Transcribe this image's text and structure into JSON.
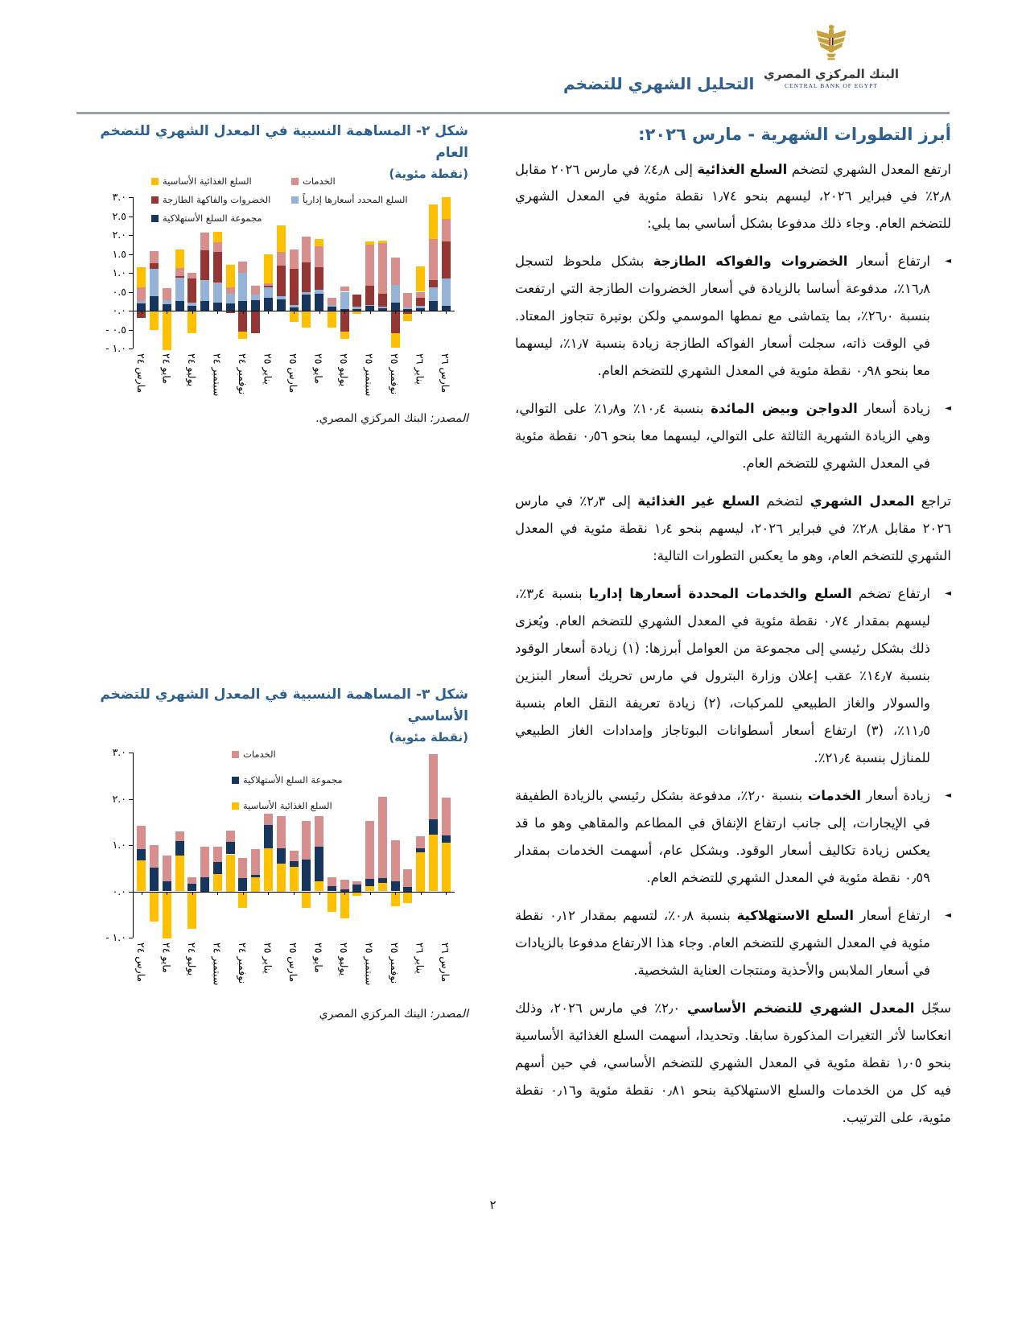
{
  "header": {
    "brand_ar": "البنك المركزي المصري",
    "brand_en": "CENTRAL BANK OF EGYPT",
    "doc_title": "التحليل الشهري للتضخم"
  },
  "article": {
    "title": "أبرز التطورات الشهرية - مارس ٢٠٢٦:",
    "blocks": [
      {
        "type": "p",
        "runs": [
          {
            "t": "ارتفع المعدل الشهري لتضخم "
          },
          {
            "t": "السلع الغذائية",
            "b": true
          },
          {
            "t": " إلى ٤٫٨٪ في مارس ٢٠٢٦ مقابل ٢٫٨٪ في فبراير ٢٠٢٦، ليسهم بنحو ١٫٧٤ نقطة مئوية في المعدل الشهري للتضخم العام. وجاء ذلك مدفوعا بشكل أساسي بما يلي:"
          }
        ]
      },
      {
        "type": "bullet",
        "runs": [
          {
            "t": "ارتفاع أسعار "
          },
          {
            "t": "الخضروات والفواكه الطازجة",
            "b": true
          },
          {
            "t": " بشكل ملحوظ لتسجل ١٦٫٨٪، مدفوعة أساسا بالزيادة في أسعار الخضروات الطازجة التي ارتفعت بنسبة ٢٦٫٠٪، بما يتماشى مع نمطها الموسمي ولكن بوتيرة تتجاوز المعتاد. في الوقت ذاته، سجلت أسعار الفواكه الطازجة زيادة بنسبة ١٫٧٪، ليسهما معا بنحو ٠٫٩٨ نقطة مئوية في المعدل الشهري للتضخم العام."
          }
        ]
      },
      {
        "type": "bullet",
        "runs": [
          {
            "t": "زيادة أسعار "
          },
          {
            "t": "الدواجن وبيض المائدة",
            "b": true
          },
          {
            "t": " بنسبة ١٠٫٤٪ و١٫٨٪ على التوالي، وهي الزيادة الشهرية الثالثة على التوالي، ليسهما معا بنحو ٠٫٥٦ نقطة مئوية في المعدل الشهري للتضخم العام."
          }
        ]
      },
      {
        "type": "p",
        "runs": [
          {
            "t": "تراجع "
          },
          {
            "t": "المعدل الشهري",
            "b": true
          },
          {
            "t": " لتضخم "
          },
          {
            "t": "السلع غير الغذائية",
            "b": true
          },
          {
            "t": " إلى ٢٫٣٪ في مارس ٢٠٢٦ مقابل ٢٫٨٪ في فبراير ٢٠٢٦، ليسهم بنحو ١٫٤ نقطة مئوية في المعدل الشهري للتضخم العام، وهو ما يعكس التطورات التالية:"
          }
        ]
      },
      {
        "type": "bullet",
        "runs": [
          {
            "t": "ارتفاع تضخم "
          },
          {
            "t": "السلع والخدمات المحددة أسعارها إداريا",
            "b": true
          },
          {
            "t": " بنسبة ٣٫٤٪، ليسهم بمقدار ٠٫٧٤ نقطة مئوية في المعدل الشهري للتضخم العام. ويُعزى ذلك بشكل رئيسي إلى مجموعة من العوامل أبرزها: (١) زيادة أسعار الوقود بنسبة ١٤٫٧٪ عقب إعلان وزارة البترول في مارس تحريك أسعار البنزين والسولار والغاز الطبيعي للمركبات، (٢) زيادة تعريفة النقل العام بنسبة ١١٫٥٪، (٣) ارتفاع أسعار أسطوانات البوتاجاز وإمدادات الغاز الطبيعي للمنازل بنسبة ٢١٫٤٪."
          }
        ]
      },
      {
        "type": "bullet",
        "runs": [
          {
            "t": "زيادة أسعار "
          },
          {
            "t": "الخدمات",
            "b": true
          },
          {
            "t": " بنسبة ٢٫٠٪، مدفوعة بشكل رئيسي بالزيادة الطفيفة في الإيجارات، إلى جانب ارتفاع الإنفاق في المطاعم والمقاهي وهو ما قد يعكس زيادة تكاليف أسعار الوقود. وبشكل عام، أسهمت الخدمات بمقدار ٠٫٥٩ نقطة مئوية في المعدل الشهري للتضخم العام."
          }
        ]
      },
      {
        "type": "bullet",
        "runs": [
          {
            "t": "ارتفاع أسعار "
          },
          {
            "t": "السلع الاستهلاكية",
            "b": true
          },
          {
            "t": " بنسبة ٠٫٨٪، لتسهم بمقدار ٠٫١٢ نقطة مئوية في المعدل الشهري للتضخم العام. وجاء هذا الارتفاع مدفوعا بالزيادات في أسعار الملابس والأحذية ومنتجات العناية الشخصية."
          }
        ]
      },
      {
        "type": "p",
        "runs": [
          {
            "t": "سجّل "
          },
          {
            "t": "المعدل الشهري للتضخم الأساسي",
            "b": true
          },
          {
            "t": " ٢٫٠٪ في مارس ٢٠٢٦، وذلك انعكاسا لأثر التغيرات المذكورة سابقا. وتحديدا، أسهمت السلع الغذائية الأساسية بنحو ١٫٠٥ نقطة مئوية في المعدل الشهري للتضخم الأساسي، في حين أسهم فيه كل من الخدمات والسلع الاستهلاكية بنحو ٠٫٨١ نقطة مئوية و٠٫١٦ نقطة مئوية، على الترتيب."
          }
        ]
      }
    ]
  },
  "figure2": {
    "title": "شكل ٢- المساهمة النسبية في المعدل الشهري للتضخم العام",
    "subtitle": "(نقطة مئوية)",
    "source_label": "المصدر:",
    "source_text": " البنك المركزي المصري."
  },
  "figure3": {
    "title": "شكل ٣- المساهمة النسبية في المعدل الشهري للتضخم الأساسي",
    "subtitle": "(نقطة مئوية)",
    "source_label": "المصدر:",
    "source_text": " البنك المركزي المصري"
  },
  "page_number": "٢",
  "chart_data": [
    {
      "type": "bar",
      "stacked": true,
      "title": "شكل ٢- المساهمة النسبية في المعدل الشهري للتضخم العام",
      "ylabel": "نقطة مئوية",
      "ylim": [
        -1.0,
        3.0
      ],
      "grid": false,
      "legend_position": "top-inside",
      "categories": [
        "مارس ٢٤",
        "أبريل ٢٤",
        "مايو ٢٤",
        "يونيو ٢٤",
        "يوليو ٢٤",
        "أغسطس ٢٤",
        "سبتمبر ٢٤",
        "أكتوبر ٢٤",
        "نوفمبر ٢٤",
        "ديسمبر ٢٤",
        "يناير ٢٥",
        "فبراير ٢٥",
        "مارس ٢٥",
        "أبريل ٢٥",
        "مايو ٢٥",
        "يونيو ٢٥",
        "يوليو ٢٥",
        "أغسطس ٢٥",
        "سبتمبر ٢٥",
        "أكتوبر ٢٥",
        "نوفمبر ٢٥",
        "ديسمبر ٢٥",
        "يناير ٢٦",
        "فبراير ٢٦",
        "مارس ٢٦"
      ],
      "x_tick_every": 2,
      "y_ticks": [
        {
          "v": 3.0,
          "label": "٣.٠"
        },
        {
          "v": 2.5,
          "label": "٢.٥"
        },
        {
          "v": 2.0,
          "label": "٢.٠"
        },
        {
          "v": 1.5,
          "label": "١.٥"
        },
        {
          "v": 1.0,
          "label": "١.٠"
        },
        {
          "v": 0.5,
          "label": "٠.٥"
        },
        {
          "v": 0.0,
          "label": "٠.٠"
        },
        {
          "v": -0.5,
          "label": "- ٠.٥"
        },
        {
          "v": -1.0,
          "label": "- ١.٠"
        }
      ],
      "series": [
        {
          "name": "مجموعة السلع الأستهلاكية",
          "color": "#17365D",
          "values": [
            0.2,
            0.38,
            0.18,
            0.25,
            0.12,
            0.25,
            0.22,
            0.2,
            0.25,
            0.28,
            0.35,
            0.3,
            0.08,
            0.42,
            0.45,
            0.1,
            0.05,
            0.05,
            0.12,
            0.06,
            0.22,
            0.05,
            0.06,
            0.25,
            0.12
          ]
        },
        {
          "name": "السلع المحدد أسعارها إدارياً",
          "color": "#95B3D7",
          "values": [
            0.06,
            0.72,
            0.1,
            0.62,
            0.1,
            0.55,
            0.53,
            0.25,
            0.75,
            0.15,
            0.27,
            0.08,
            0.07,
            0.06,
            0.1,
            0.05,
            0.45,
            0.05,
            0.03,
            0.04,
            0.46,
            0.03,
            0.06,
            0.37,
            0.74
          ]
        },
        {
          "name": "الخضروات والفاكهة الطازجة",
          "color": "#943634",
          "values": [
            -0.2,
            0.15,
            0.0,
            0.05,
            0.63,
            0.8,
            0.8,
            -0.07,
            -0.55,
            -0.6,
            0.05,
            0.82,
            0.95,
            0.8,
            0.6,
            0.0,
            -0.55,
            0.32,
            0.5,
            0.35,
            -0.6,
            -0.08,
            0.23,
            0.18,
            0.98
          ]
        },
        {
          "name": "الخدمات",
          "color": "#D78F8D",
          "values": [
            0.36,
            0.32,
            0.32,
            0.2,
            0.15,
            0.47,
            0.25,
            0.17,
            0.3,
            0.22,
            0.05,
            0.35,
            0.52,
            0.67,
            0.55,
            0.2,
            0.13,
            0.0,
            1.1,
            1.33,
            0.72,
            0.38,
            0.15,
            1.1,
            0.59
          ]
        },
        {
          "name": "السلع الغذائية الأساسية",
          "color": "#FFC000",
          "values": [
            0.52,
            -0.52,
            -1.05,
            0.5,
            -0.6,
            0.0,
            0.28,
            0.6,
            -0.2,
            0.0,
            0.78,
            0.7,
            -0.3,
            -0.45,
            0.2,
            -0.45,
            -0.2,
            -0.08,
            0.07,
            0.07,
            -0.38,
            -0.2,
            0.67,
            0.9,
            0.58
          ]
        }
      ]
    },
    {
      "type": "bar",
      "stacked": true,
      "title": "شكل ٣- المساهمة النسبية في المعدل الشهري للتضخم الأساسي",
      "ylabel": "نقطة مئوية",
      "ylim": [
        -1.0,
        3.0
      ],
      "grid": false,
      "legend_position": "top-inside",
      "categories": [
        "مارس ٢٤",
        "أبريل ٢٤",
        "مايو ٢٤",
        "يونيو ٢٤",
        "يوليو ٢٤",
        "أغسطس ٢٤",
        "سبتمبر ٢٤",
        "أكتوبر ٢٤",
        "نوفمبر ٢٤",
        "ديسمبر ٢٤",
        "يناير ٢٥",
        "فبراير ٢٥",
        "مارس ٢٥",
        "أبريل ٢٥",
        "مايو ٢٥",
        "يونيو ٢٥",
        "يوليو ٢٥",
        "أغسطس ٢٥",
        "سبتمبر ٢٥",
        "أكتوبر ٢٥",
        "نوفمبر ٢٥",
        "ديسمبر ٢٥",
        "يناير ٢٦",
        "فبراير ٢٦",
        "مارس ٢٦"
      ],
      "x_tick_every": 2,
      "y_ticks": [
        {
          "v": 3.0,
          "label": "٣.٠"
        },
        {
          "v": 2.0,
          "label": "٢.٠"
        },
        {
          "v": 1.0,
          "label": "١.٠"
        },
        {
          "v": 0.0,
          "label": "٠.٠"
        },
        {
          "v": -1.0,
          "label": "- ١.٠"
        }
      ],
      "series": [
        {
          "name": "السلع الغذائية الأساسية",
          "color": "#FFC000",
          "values": [
            0.67,
            -0.65,
            -1.02,
            0.77,
            -0.8,
            -0.03,
            0.38,
            0.8,
            -0.35,
            0.3,
            0.93,
            0.6,
            0.53,
            -0.35,
            0.22,
            -0.45,
            -0.58,
            -0.1,
            0.12,
            0.18,
            -0.33,
            -0.25,
            0.85,
            1.22,
            1.05
          ]
        },
        {
          "name": "مجموعة السلع الأستهلاكية",
          "color": "#17365D",
          "values": [
            0.25,
            0.52,
            0.22,
            0.31,
            0.17,
            0.3,
            0.25,
            0.27,
            0.28,
            0.05,
            0.5,
            0.33,
            0.12,
            0.68,
            0.75,
            0.12,
            0.05,
            0.15,
            0.15,
            0.1,
            0.22,
            0.1,
            0.08,
            0.33,
            0.16
          ]
        },
        {
          "name": "الخدمات",
          "color": "#D78F8D",
          "values": [
            0.5,
            0.48,
            0.55,
            0.22,
            0.14,
            0.66,
            0.34,
            0.24,
            0.45,
            0.57,
            0.25,
            0.7,
            0.22,
            0.85,
            0.66,
            0.19,
            0.2,
            0.07,
            1.26,
            1.76,
            0.88,
            0.38,
            0.27,
            1.42,
            0.81
          ]
        }
      ]
    }
  ]
}
